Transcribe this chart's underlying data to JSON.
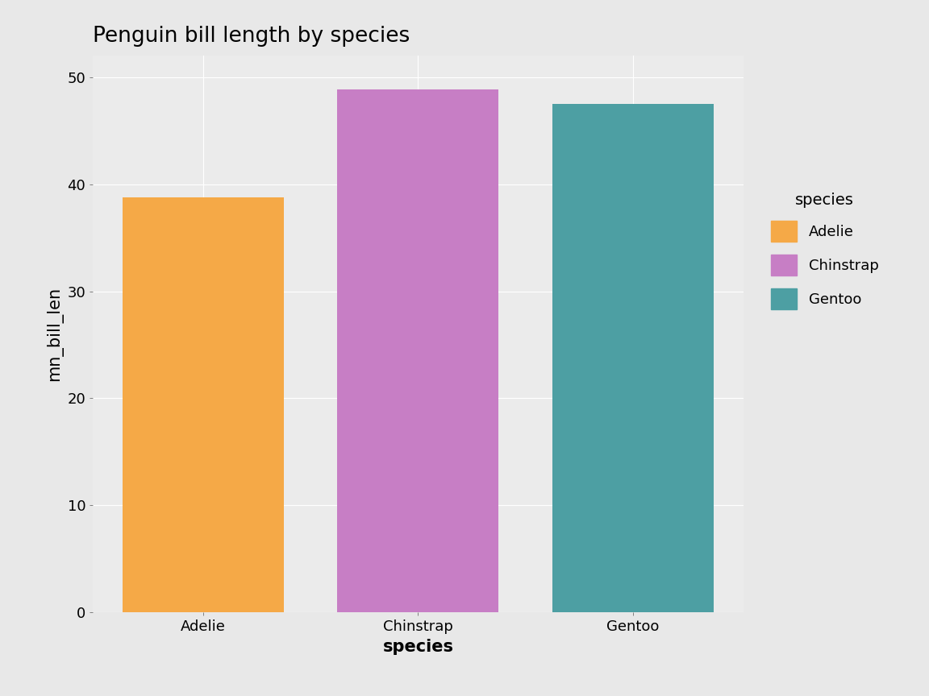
{
  "title": "Penguin bill length by species",
  "categories": [
    "Adelie",
    "Chinstrap",
    "Gentoo"
  ],
  "values": [
    38.79,
    48.83,
    47.5
  ],
  "bar_colors": [
    "#F5A947",
    "#C77EC5",
    "#4D9FA3"
  ],
  "legend_colors": [
    "#F5A947",
    "#C77EC5",
    "#4D9FA3"
  ],
  "legend_title": "species",
  "legend_labels": [
    "Adelie",
    "Chinstrap",
    "Gentoo"
  ],
  "xlabel": "species",
  "ylabel": "mn_bill_len",
  "ylim": [
    0,
    52
  ],
  "yticks": [
    0,
    10,
    20,
    30,
    40,
    50
  ],
  "outer_background": "#E8E8E8",
  "panel_background": "#EBEBEB",
  "grid_color": "#FFFFFF",
  "title_fontsize": 19,
  "axis_label_fontsize": 15,
  "tick_fontsize": 13,
  "legend_fontsize": 13,
  "legend_title_fontsize": 14
}
